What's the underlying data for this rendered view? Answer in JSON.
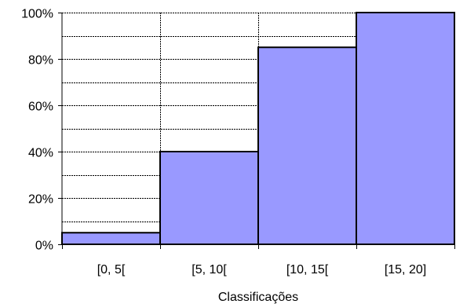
{
  "chart_data": {
    "type": "bar",
    "categories": [
      "[0, 5[",
      "[5, 10[",
      "[10, 15[",
      "[15, 20]"
    ],
    "values": [
      5,
      40,
      85,
      100
    ],
    "xlabel": "Classificações",
    "ylabel": "",
    "ylim": [
      0,
      100
    ],
    "yticks": [
      "0%",
      "20%",
      "40%",
      "60%",
      "80%",
      "100%"
    ],
    "minor_gridline_step": 10,
    "grid": true,
    "legend": "none",
    "bar_color": "#9999ff",
    "bar_border_color": "#000000"
  }
}
